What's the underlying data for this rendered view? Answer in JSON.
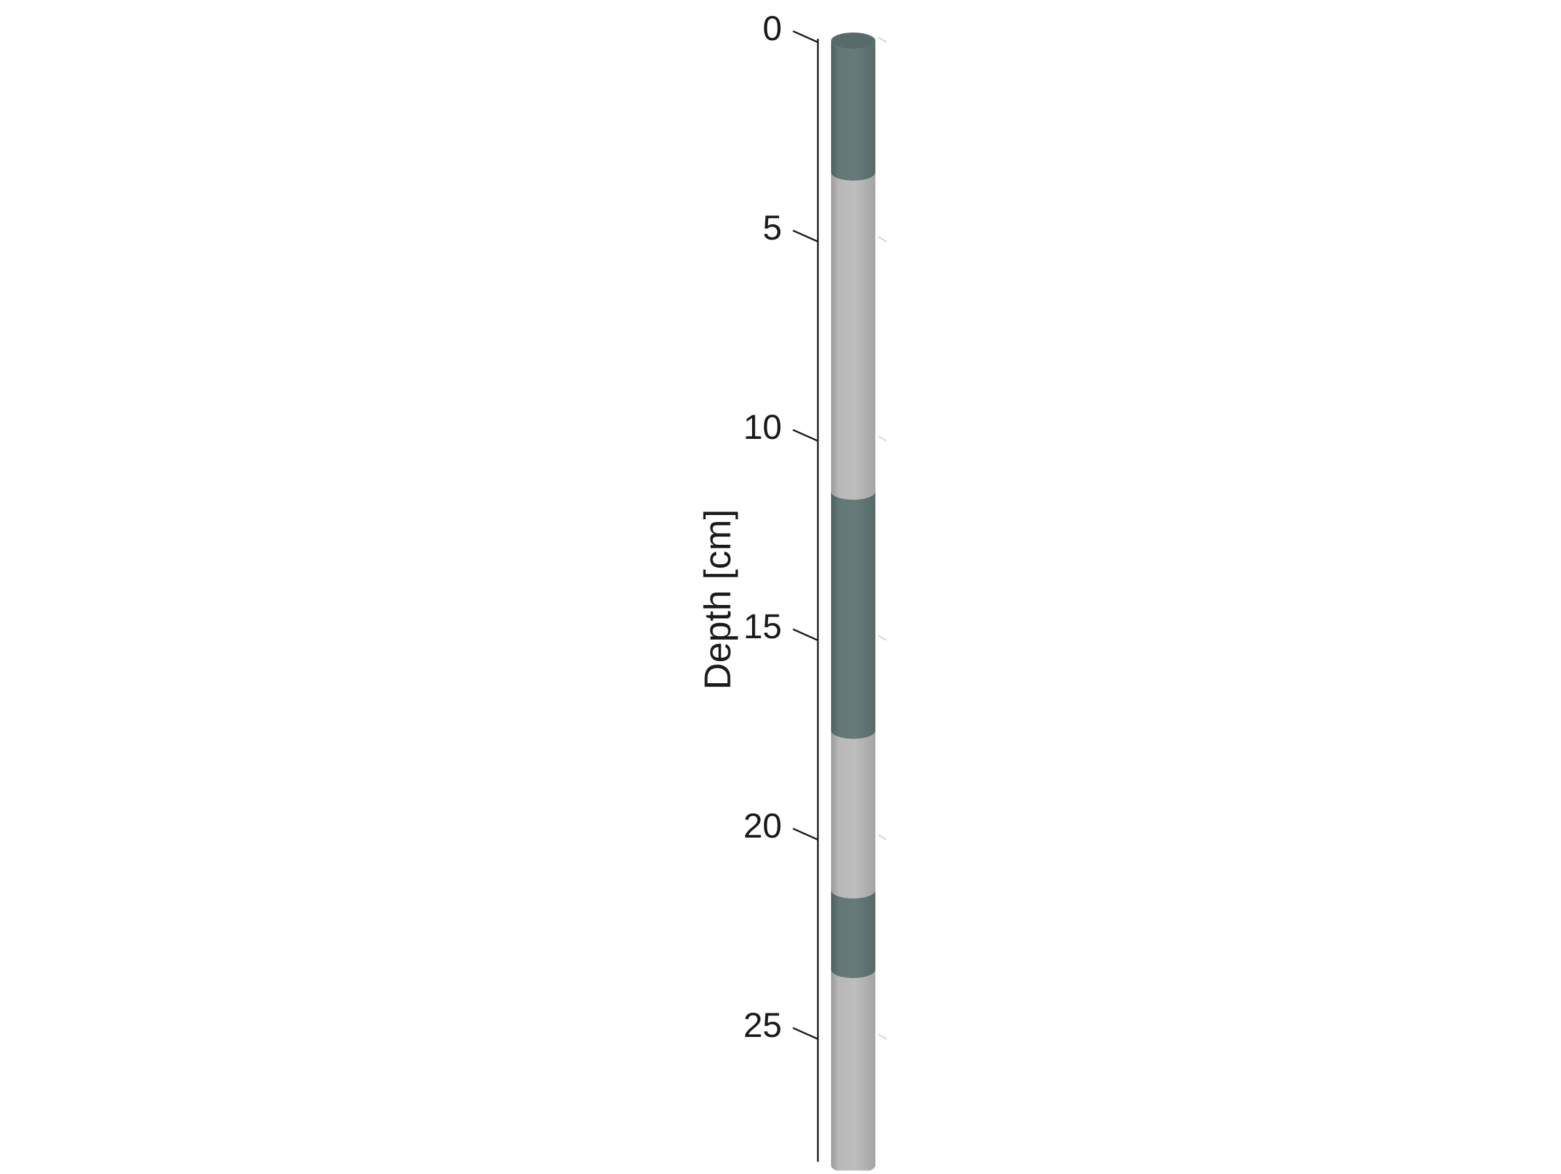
{
  "chart_data": {
    "type": "core-column",
    "title": "",
    "ylabel": "Depth [cm]",
    "y_unit": "cm",
    "ylim": [
      0,
      28.2
    ],
    "y_inverted": true,
    "yticks": [
      0,
      5,
      10,
      15,
      20,
      25
    ],
    "ytick_labels": [
      "0",
      "5",
      "10",
      "15",
      "20",
      "25"
    ],
    "grid": false,
    "legend": "none",
    "segments": [
      {
        "top": 0.0,
        "bottom": 3.3,
        "shade": "dark"
      },
      {
        "top": 3.3,
        "bottom": 11.3,
        "shade": "light"
      },
      {
        "top": 11.3,
        "bottom": 17.3,
        "shade": "dark"
      },
      {
        "top": 17.3,
        "bottom": 21.3,
        "shade": "light"
      },
      {
        "top": 21.3,
        "bottom": 23.3,
        "shade": "dark"
      },
      {
        "top": 23.3,
        "bottom": 28.2,
        "shade": "light"
      }
    ]
  },
  "colors": {
    "dark_side": "#637776",
    "dark_top": "#566b6a",
    "light_side": "#b7b7b7",
    "light_top": "#c6c6c6",
    "axis": "#1a1a1a",
    "faint_tick": "#d6d6d6"
  }
}
